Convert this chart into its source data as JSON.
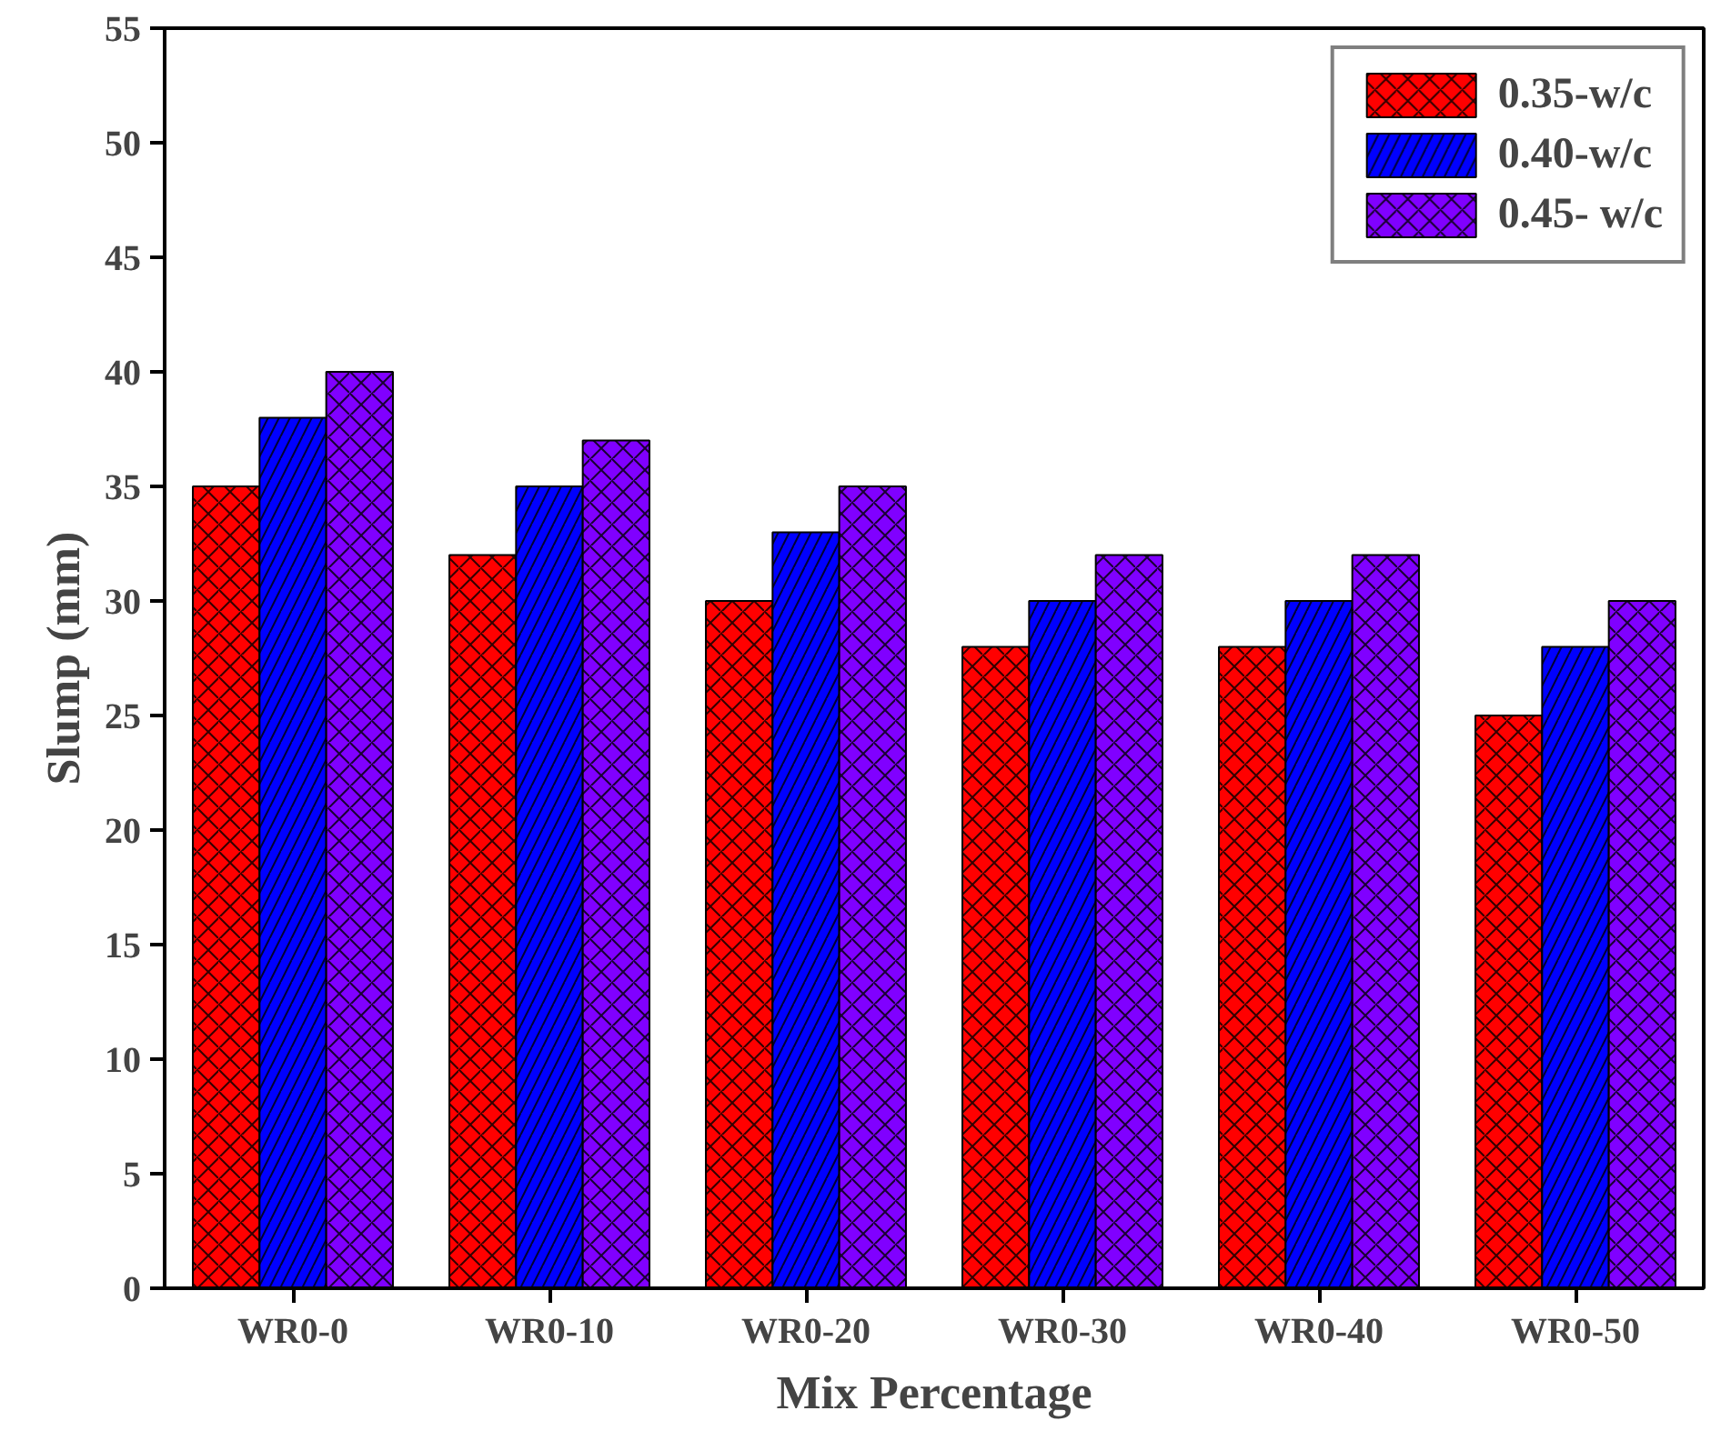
{
  "chart_data": {
    "type": "bar",
    "xlabel": "Mix Percentage",
    "ylabel": "Slump (mm)",
    "categories": [
      "WR0-0",
      "WR0-10",
      "WR0-20",
      "WR0-30",
      "WR0-40",
      "WR0-50"
    ],
    "series": [
      {
        "name": "0.35-w/c",
        "color": "#ff0000",
        "values": [
          35,
          32,
          30,
          28,
          28,
          25
        ]
      },
      {
        "name": "0.40-w/c",
        "color": "#0000ff",
        "values": [
          38,
          35,
          33,
          30,
          30,
          28
        ]
      },
      {
        "name": "0.45- w/c",
        "color": "#8000ff",
        "values": [
          40,
          37,
          35,
          32,
          32,
          30
        ]
      }
    ],
    "ylim": [
      0,
      55
    ],
    "yticks": [
      0,
      5,
      10,
      15,
      20,
      25,
      30,
      35,
      40,
      45,
      50,
      55
    ],
    "grid": false,
    "legend": "top right"
  }
}
